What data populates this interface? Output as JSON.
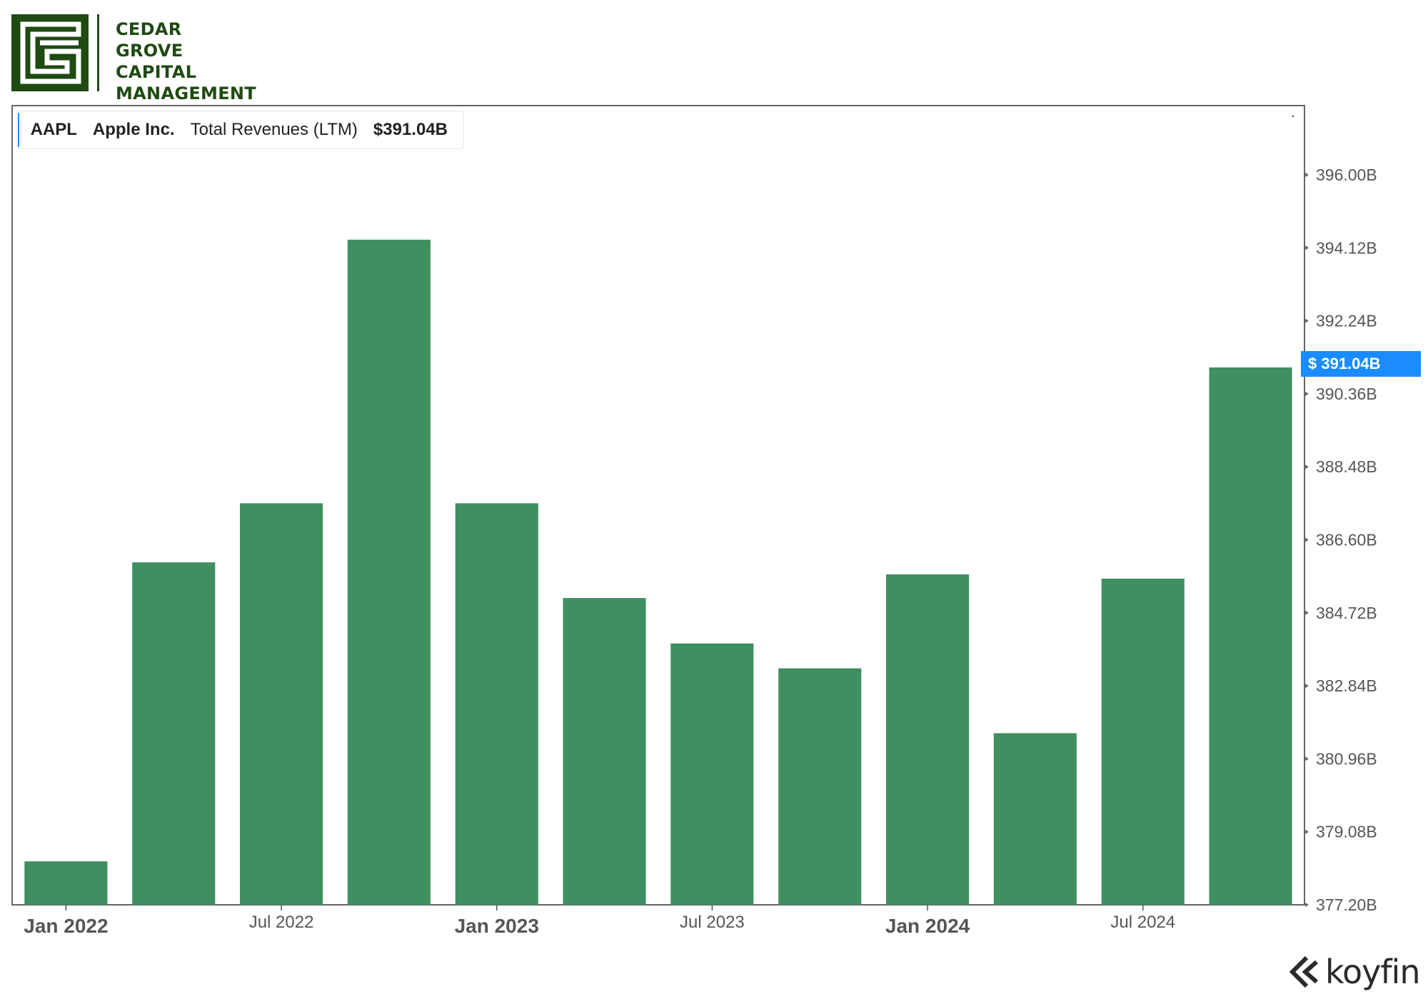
{
  "logo": {
    "lines": [
      "CEDAR",
      "GROVE",
      "CAPITAL",
      "MANAGEMENT"
    ],
    "color": "#1f4a13"
  },
  "legend": {
    "ticker": "AAPL",
    "company": "Apple Inc.",
    "metric": "Total Revenues (LTM)",
    "value": "$391.04B",
    "accent_color": "#1a8cff"
  },
  "current_value_badge": "$ 391.04B",
  "brand": {
    "name": "koyfin"
  },
  "chart_data": {
    "type": "bar",
    "title": "",
    "xlabel": "",
    "ylabel": "",
    "ylim": [
      377.2,
      397.5
    ],
    "y_ticks": [
      "396.00B",
      "394.12B",
      "392.24B",
      "390.36B",
      "388.48B",
      "386.60B",
      "384.72B",
      "382.84B",
      "380.96B",
      "379.08B",
      "377.20B"
    ],
    "y_tick_values": [
      396.0,
      394.12,
      392.24,
      390.36,
      388.48,
      386.6,
      384.72,
      382.84,
      380.96,
      379.08,
      377.2
    ],
    "x_ticks": [
      {
        "label": "Jan 2022",
        "major": true,
        "category_index": 0
      },
      {
        "label": "Jul 2022",
        "major": false,
        "category_index": 2
      },
      {
        "label": "Jan 2023",
        "major": true,
        "category_index": 4
      },
      {
        "label": "Jul 2023",
        "major": false,
        "category_index": 6
      },
      {
        "label": "Jan 2024",
        "major": true,
        "category_index": 8
      },
      {
        "label": "Jul 2024",
        "major": false,
        "category_index": 10
      }
    ],
    "series": [
      {
        "color": "#3f8f60",
        "values": [
          378.32,
          386.02,
          387.54,
          394.33,
          387.54,
          385.1,
          383.93,
          383.29,
          385.71,
          381.62,
          385.6,
          391.04
        ]
      }
    ],
    "grid": false,
    "legend": "top-left"
  }
}
